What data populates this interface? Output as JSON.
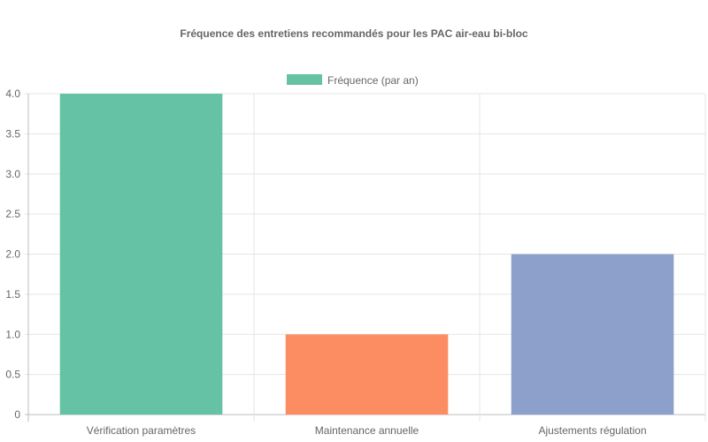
{
  "chart_data": {
    "type": "bar",
    "title": "Fréquence des entretiens recommandés pour les PAC air-eau bi-bloc",
    "categories": [
      "Vérification paramètres",
      "Maintenance annuelle",
      "Ajustements régulation"
    ],
    "series": [
      {
        "name": "Fréquence (par an)",
        "values": [
          4,
          1,
          2
        ],
        "colors": [
          "#66c2a5",
          "#fc8d62",
          "#8da0cb"
        ]
      }
    ],
    "y_ticks": [
      "0",
      "0.5",
      "1.0",
      "1.5",
      "2.0",
      "2.5",
      "3.0",
      "3.5",
      "4.0"
    ],
    "ylim": [
      0,
      4
    ],
    "grid": true,
    "legend_position": "top"
  }
}
